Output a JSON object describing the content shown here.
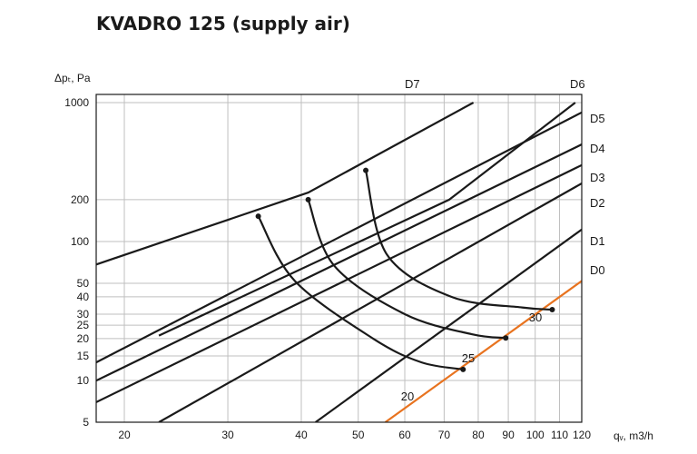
{
  "chart_data": {
    "type": "line",
    "title": "KVADRO 125 (supply air)",
    "xlabel": "qᵥ, m3/h",
    "ylabel": "Δpₜ, Pa",
    "x_ticks": [
      20,
      30,
      40,
      50,
      60,
      70,
      80,
      90,
      100,
      110,
      120
    ],
    "y_ticks": [
      5,
      10,
      15,
      20,
      25,
      30,
      40,
      50,
      100,
      200,
      1000
    ],
    "grid": true,
    "colors": {
      "lines": "#1a1a1a",
      "d0": "#e8731f",
      "grid": "#bfbfbf"
    },
    "series": [
      {
        "name": "D7",
        "points": [
          [
            15.4,
            55
          ],
          [
            41.1,
            225
          ],
          [
            78.5,
            1000
          ]
        ]
      },
      {
        "name": "D6",
        "points": [
          [
            22.9,
            21
          ],
          [
            71.4,
            200
          ],
          [
            117,
            1000
          ]
        ]
      },
      {
        "name": "D5",
        "points": [
          [
            15.4,
            9.7
          ],
          [
            120,
            850
          ]
        ]
      },
      {
        "name": "D4",
        "points": [
          [
            15.4,
            7.3
          ],
          [
            120,
            500
          ]
        ]
      },
      {
        "name": "D3",
        "points": [
          [
            15.4,
            5.1
          ],
          [
            120,
            355
          ]
        ]
      },
      {
        "name": "D2",
        "points": [
          [
            22.9,
            5
          ],
          [
            120,
            262
          ]
        ]
      },
      {
        "name": "D1",
        "points": [
          [
            42.3,
            5
          ],
          [
            120,
            122
          ]
        ]
      },
      {
        "name": "D0",
        "points": [
          [
            55.6,
            5
          ],
          [
            120,
            52
          ]
        ]
      },
      {
        "name": "20",
        "points": [
          [
            33.8,
            152
          ],
          [
            39,
            52
          ],
          [
            53,
            20
          ],
          [
            64,
            13.5
          ],
          [
            75.4,
            12
          ]
        ]
      },
      {
        "name": "25",
        "points": [
          [
            41.1,
            200
          ],
          [
            45.5,
            67
          ],
          [
            60,
            30
          ],
          [
            78,
            21.5
          ],
          [
            89.1,
            20.2
          ]
        ]
      },
      {
        "name": "30",
        "points": [
          [
            51.5,
            325
          ],
          [
            56,
            80
          ],
          [
            72,
            40
          ],
          [
            95,
            33.5
          ],
          [
            106.9,
            32.3
          ]
        ]
      }
    ],
    "curve_labels": {
      "20": "20",
      "25": "25",
      "30": "30"
    }
  }
}
